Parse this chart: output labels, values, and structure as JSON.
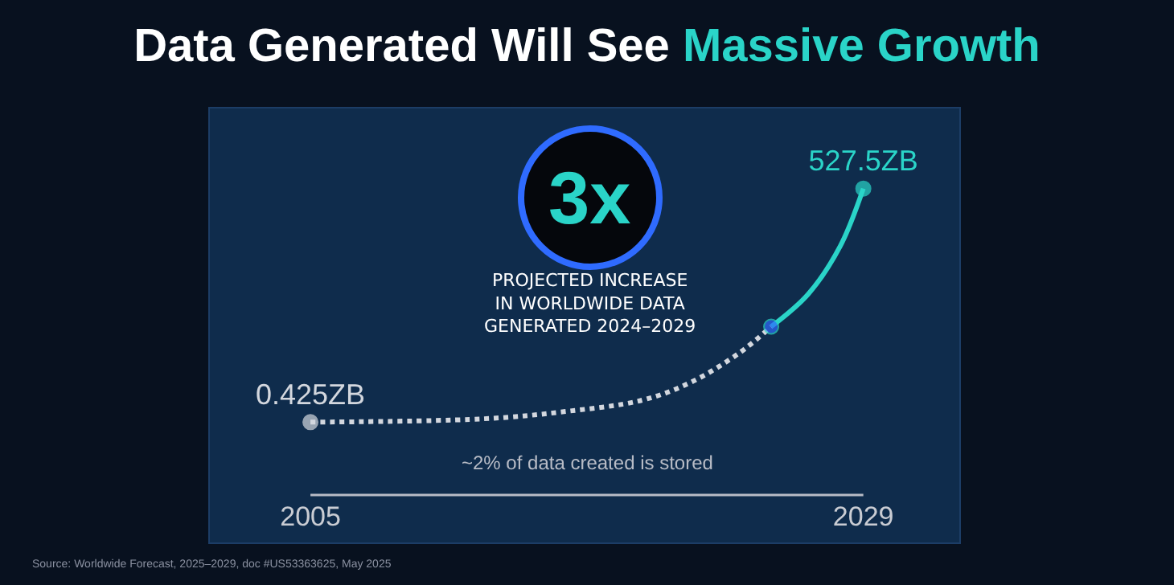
{
  "chart_data": {
    "type": "line",
    "title": "Data Generated Will See Massive Growth",
    "x": [
      2005,
      2012.5,
      2016,
      2019.4,
      2021.5,
      2023.6,
      2025
    ],
    "series": [
      {
        "color": "#d3d7de",
        "line_style": "dotted",
        "values": [
          0.425,
          8,
          24,
          50,
          90,
          156,
          216
        ],
        "value_labels": [
          "0.425ZB",
          null,
          null,
          null,
          null,
          null,
          null
        ],
        "colors": [
          "#d3d7de",
          null,
          null,
          null,
          null,
          null,
          null
        ]
      },
      {
        "color": "#2ad4c8",
        "line_style": "solid",
        "x": [
          2025,
          2026.6,
          2028,
          2029
        ],
        "values": [
          216,
          289,
          398,
          527.5
        ],
        "value_labels": [
          null,
          null,
          null,
          "527.5ZB"
        ],
        "colors": [
          "#2f6bff",
          null,
          null,
          "#2ad4c8"
        ]
      }
    ],
    "xlim": [
      2000.6,
      2033.2
    ],
    "xticks": [
      2005,
      2029
    ],
    "tick_labels": "x",
    "annotations": [
      "3x",
      "PROJECTED INCREASE\nIN WORLDWIDE DATA\nGENERATED 2024–2029",
      "~2% of data created is stored",
      "Source: Worldwide Forecast, 2025–2029, doc #US53363625, May 2025"
    ]
  }
}
